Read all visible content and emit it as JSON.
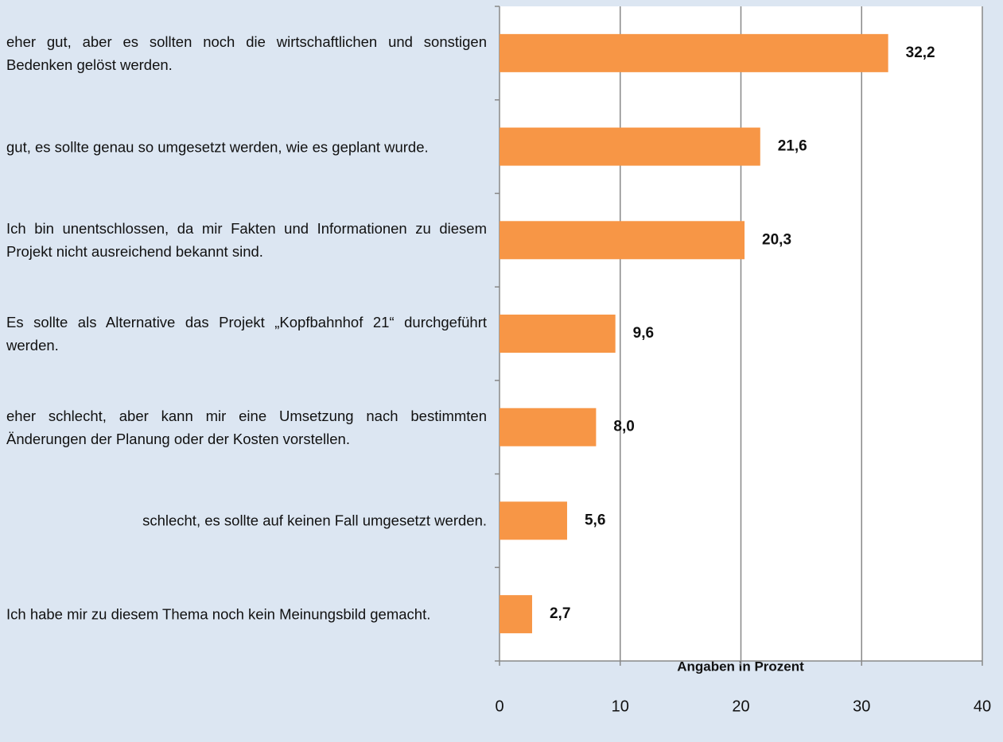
{
  "chart_data": {
    "type": "barh",
    "categories": [
      "eher gut, aber es sollten noch die wirtschaftlichen und sonstigen Bedenken gelöst werden.",
      "gut, es sollte genau so umgesetzt werden, wie es geplant wurde.",
      "Ich bin unentschlossen, da mir Fakten und Informationen zu diesem Projekt nicht ausreichend bekannt sind.",
      "Es sollte als Alternative das Projekt „Kopfbahnhof 21“ durchgeführt werden.",
      "eher schlecht, aber kann mir eine Umsetzung nach bestimmten Änderungen der Planung oder der Kosten vorstellen.",
      "schlecht, es sollte auf keinen Fall umgesetzt werden.",
      "Ich habe mir zu diesem Thema noch kein Meinungsbild gemacht."
    ],
    "values": [
      32.2,
      21.6,
      20.3,
      9.6,
      8.0,
      5.6,
      2.7
    ],
    "value_labels": [
      "32,2",
      "21,6",
      "20,3",
      "9,6",
      "8,0",
      "5,6",
      "2,7"
    ],
    "color": "#f79646",
    "xlabel": "Angaben in Prozent",
    "xlim": [
      0,
      40
    ],
    "xticks": [
      0,
      10,
      20,
      30,
      40
    ],
    "grid": true
  }
}
